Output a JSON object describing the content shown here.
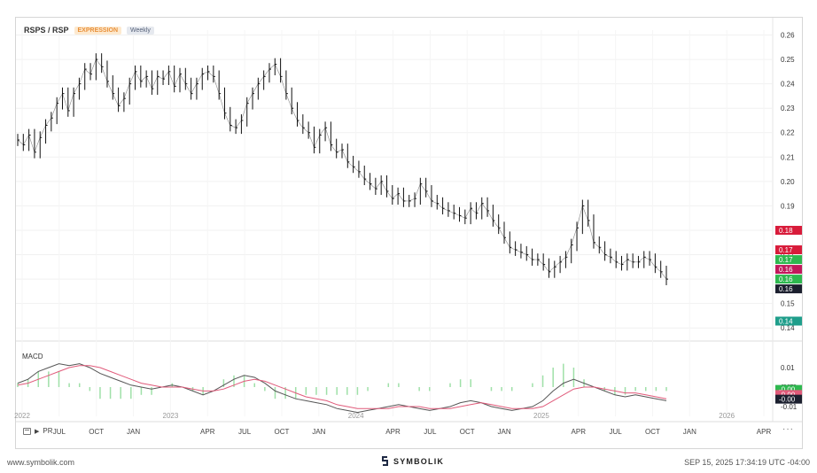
{
  "header": {
    "title": "RSPS / RSP",
    "badge_expression": "EXPRESSION",
    "badge_interval": "Weekly"
  },
  "macd_label": "MACD",
  "toolbar": {
    "range_label": "PR",
    "more": "···"
  },
  "footer": {
    "website": "www.symbolik.com",
    "brand": "SYMBOLIK",
    "timestamp": "SEP 15, 2025 17:34:19 UTC -04:00"
  },
  "colors": {
    "up_marker": "#2eb84f",
    "down_marker": "#d81b60",
    "macd_line": "#555555",
    "signal_line": "#e05a7a",
    "histogram": "#9fe0a8"
  },
  "chart_data": {
    "type": "line",
    "x_tick_labels": [
      "2022",
      "JUL",
      "OCT",
      "JAN",
      "2023",
      "APR",
      "JUL",
      "OCT",
      "JAN",
      "2024",
      "APR",
      "JUL",
      "OCT",
      "JAN",
      "2025",
      "APR",
      "JUL",
      "OCT",
      "JAN",
      "2026",
      "APR"
    ],
    "y_ticks": [
      "0.26",
      "0.25",
      "0.24",
      "0.23",
      "0.22",
      "0.21",
      "0.20",
      "0.19",
      "0.18",
      "0.17",
      "0.16",
      "0.15",
      "0.14"
    ],
    "ylim": [
      0.135,
      0.262
    ],
    "price_series": {
      "name": "RSPS / RSP",
      "values": [
        0.217,
        0.215,
        0.219,
        0.212,
        0.218,
        0.223,
        0.226,
        0.232,
        0.236,
        0.229,
        0.236,
        0.24,
        0.246,
        0.244,
        0.25,
        0.247,
        0.241,
        0.236,
        0.231,
        0.234,
        0.24,
        0.245,
        0.241,
        0.243,
        0.238,
        0.243,
        0.242,
        0.245,
        0.239,
        0.244,
        0.24,
        0.236,
        0.24,
        0.244,
        0.245,
        0.243,
        0.236,
        0.228,
        0.223,
        0.222,
        0.225,
        0.232,
        0.236,
        0.24,
        0.243,
        0.246,
        0.248,
        0.243,
        0.236,
        0.23,
        0.225,
        0.222,
        0.22,
        0.214,
        0.219,
        0.222,
        0.215,
        0.212,
        0.213,
        0.208,
        0.206,
        0.204,
        0.201,
        0.199,
        0.197,
        0.2,
        0.196,
        0.193,
        0.195,
        0.192,
        0.192,
        0.193,
        0.199,
        0.196,
        0.192,
        0.191,
        0.189,
        0.188,
        0.187,
        0.186,
        0.185,
        0.189,
        0.187,
        0.191,
        0.188,
        0.184,
        0.181,
        0.177,
        0.173,
        0.172,
        0.171,
        0.17,
        0.168,
        0.168,
        0.166,
        0.163,
        0.165,
        0.167,
        0.169,
        0.174,
        0.181,
        0.19,
        0.184,
        0.175,
        0.173,
        0.17,
        0.169,
        0.167,
        0.166,
        0.168,
        0.167,
        0.167,
        0.169,
        0.168,
        0.165,
        0.163,
        0.16
      ]
    },
    "price_labels": [
      {
        "value": 0.18,
        "text": "0.18",
        "color": "#d81b3a"
      },
      {
        "value": 0.172,
        "text": "0.17",
        "color": "#d81b3a"
      },
      {
        "value": 0.168,
        "text": "0.17",
        "color": "#2eb84f"
      },
      {
        "value": 0.164,
        "text": "0.16",
        "color": "#c2185b"
      },
      {
        "value": 0.16,
        "text": "0.16",
        "color": "#2eb84f"
      },
      {
        "value": 0.156,
        "text": "0.16",
        "color": "#1b1f2e"
      },
      {
        "value": 0.1428,
        "text": "0.14",
        "color": "#1f9e8b"
      }
    ],
    "macd": {
      "y_ticks": [
        "0.01",
        "0.00",
        "-0.00",
        "-0.01"
      ],
      "ylim": [
        -0.015,
        0.015
      ],
      "macd_values": [
        0.002,
        0.004,
        0.008,
        0.01,
        0.012,
        0.011,
        0.012,
        0.01,
        0.007,
        0.005,
        0.003,
        0.001,
        0.0,
        -0.001,
        0.0,
        0.001,
        0.0,
        -0.002,
        -0.004,
        -0.002,
        0.001,
        0.004,
        0.006,
        0.005,
        0.002,
        -0.002,
        -0.004,
        -0.006,
        -0.007,
        -0.008,
        -0.009,
        -0.011,
        -0.012,
        -0.013,
        -0.012,
        -0.011,
        -0.01,
        -0.009,
        -0.01,
        -0.011,
        -0.012,
        -0.011,
        -0.01,
        -0.008,
        -0.007,
        -0.008,
        -0.01,
        -0.011,
        -0.012,
        -0.011,
        -0.01,
        -0.007,
        -0.002,
        0.002,
        0.004,
        0.002,
        0.0,
        -0.002,
        -0.004,
        -0.005,
        -0.004,
        -0.005,
        -0.006,
        -0.007
      ],
      "signal_values": [
        0.001,
        0.002,
        0.004,
        0.006,
        0.008,
        0.01,
        0.011,
        0.011,
        0.01,
        0.008,
        0.006,
        0.004,
        0.002,
        0.001,
        0.0,
        0.0,
        0.0,
        -0.001,
        -0.002,
        -0.002,
        -0.001,
        0.001,
        0.003,
        0.004,
        0.003,
        0.001,
        -0.001,
        -0.003,
        -0.005,
        -0.006,
        -0.007,
        -0.009,
        -0.01,
        -0.011,
        -0.011,
        -0.011,
        -0.011,
        -0.01,
        -0.01,
        -0.01,
        -0.011,
        -0.011,
        -0.011,
        -0.01,
        -0.009,
        -0.008,
        -0.009,
        -0.01,
        -0.011,
        -0.011,
        -0.011,
        -0.01,
        -0.007,
        -0.004,
        -0.001,
        0.0,
        0.0,
        -0.001,
        -0.002,
        -0.003,
        -0.003,
        -0.004,
        -0.005,
        -0.006
      ],
      "labels": [
        {
          "value": -0.0012,
          "text": "-0.00",
          "color": "#2eb84f"
        },
        {
          "value": -0.0038,
          "text": "-0.00",
          "color": "#e05a7a"
        },
        {
          "value": -0.0062,
          "text": "-0.00",
          "color": "#1b1f2e"
        }
      ]
    },
    "grid": true
  }
}
